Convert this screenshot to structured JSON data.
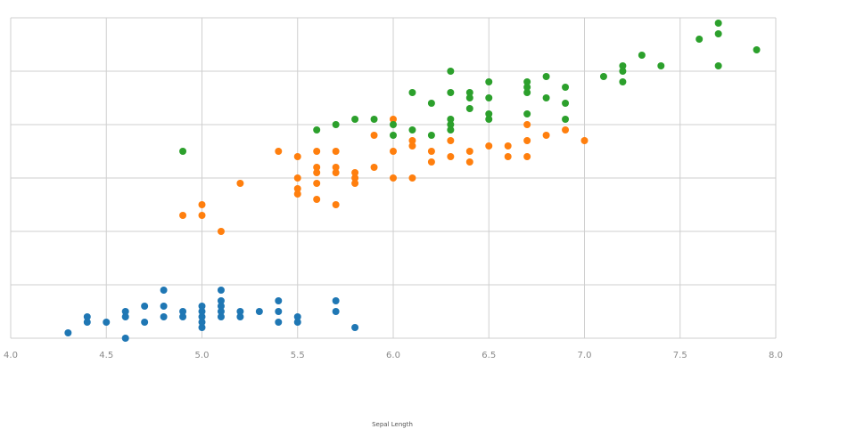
{
  "chart_data": {
    "type": "scatter",
    "title": "",
    "xlabel": "Sepal Length",
    "ylabel": "",
    "xlim": [
      4.0,
      8.0
    ],
    "ylim": [
      0,
      6
    ],
    "x_ticks": [
      "4.0",
      "4.5",
      "5.0",
      "5.5",
      "6.0",
      "6.5",
      "7.0",
      "7.5",
      "8.0"
    ],
    "y_tick_count": 6,
    "grid": true,
    "legend": "none",
    "series": [
      {
        "color": "#1f77b4",
        "points": [
          [
            4.3,
            0.1
          ],
          [
            4.4,
            0.3
          ],
          [
            4.4,
            0.4
          ],
          [
            4.5,
            0.3
          ],
          [
            4.6,
            0.0
          ],
          [
            4.6,
            0.4
          ],
          [
            4.6,
            0.5
          ],
          [
            4.7,
            0.3
          ],
          [
            4.7,
            0.6
          ],
          [
            4.8,
            0.4
          ],
          [
            4.8,
            0.6
          ],
          [
            4.8,
            0.9
          ],
          [
            4.9,
            0.4
          ],
          [
            4.9,
            0.5
          ],
          [
            5.0,
            0.2
          ],
          [
            5.0,
            0.3
          ],
          [
            5.0,
            0.4
          ],
          [
            5.0,
            0.5
          ],
          [
            5.0,
            0.6
          ],
          [
            5.1,
            0.4
          ],
          [
            5.1,
            0.5
          ],
          [
            5.1,
            0.6
          ],
          [
            5.1,
            0.7
          ],
          [
            5.1,
            0.9
          ],
          [
            5.2,
            0.4
          ],
          [
            5.2,
            0.5
          ],
          [
            5.3,
            0.5
          ],
          [
            5.4,
            0.3
          ],
          [
            5.4,
            0.5
          ],
          [
            5.4,
            0.7
          ],
          [
            5.5,
            0.3
          ],
          [
            5.5,
            0.4
          ],
          [
            5.7,
            0.5
          ],
          [
            5.7,
            0.7
          ],
          [
            5.8,
            0.2
          ]
        ]
      },
      {
        "color": "#ff7f0e",
        "points": [
          [
            4.9,
            2.3
          ],
          [
            5.0,
            2.3
          ],
          [
            5.0,
            2.5
          ],
          [
            5.1,
            2.0
          ],
          [
            5.2,
            2.9
          ],
          [
            5.4,
            3.5
          ],
          [
            5.5,
            2.7
          ],
          [
            5.5,
            2.8
          ],
          [
            5.5,
            3.0
          ],
          [
            5.5,
            3.4
          ],
          [
            5.6,
            2.6
          ],
          [
            5.6,
            2.9
          ],
          [
            5.6,
            3.1
          ],
          [
            5.6,
            3.2
          ],
          [
            5.6,
            3.5
          ],
          [
            5.7,
            2.5
          ],
          [
            5.7,
            3.1
          ],
          [
            5.7,
            3.2
          ],
          [
            5.7,
            3.5
          ],
          [
            5.8,
            2.9
          ],
          [
            5.8,
            3.0
          ],
          [
            5.8,
            3.1
          ],
          [
            5.9,
            3.2
          ],
          [
            5.9,
            3.8
          ],
          [
            6.0,
            3.0
          ],
          [
            6.0,
            3.5
          ],
          [
            6.0,
            4.1
          ],
          [
            6.1,
            3.0
          ],
          [
            6.1,
            3.6
          ],
          [
            6.1,
            3.7
          ],
          [
            6.2,
            3.3
          ],
          [
            6.2,
            3.5
          ],
          [
            6.3,
            3.4
          ],
          [
            6.3,
            3.7
          ],
          [
            6.4,
            3.3
          ],
          [
            6.4,
            3.5
          ],
          [
            6.5,
            3.6
          ],
          [
            6.6,
            3.4
          ],
          [
            6.6,
            3.6
          ],
          [
            6.7,
            3.4
          ],
          [
            6.7,
            3.7
          ],
          [
            6.7,
            4.0
          ],
          [
            6.8,
            3.8
          ],
          [
            6.9,
            3.9
          ],
          [
            7.0,
            3.7
          ]
        ]
      },
      {
        "color": "#2ca02c",
        "points": [
          [
            4.9,
            3.5
          ],
          [
            5.6,
            3.9
          ],
          [
            5.7,
            4.0
          ],
          [
            5.8,
            4.1
          ],
          [
            5.9,
            4.1
          ],
          [
            6.0,
            3.8
          ],
          [
            6.0,
            4.0
          ],
          [
            6.1,
            3.9
          ],
          [
            6.1,
            4.6
          ],
          [
            6.2,
            3.8
          ],
          [
            6.2,
            4.4
          ],
          [
            6.3,
            3.9
          ],
          [
            6.3,
            4.0
          ],
          [
            6.3,
            4.1
          ],
          [
            6.3,
            4.6
          ],
          [
            6.3,
            5.0
          ],
          [
            6.4,
            4.3
          ],
          [
            6.4,
            4.5
          ],
          [
            6.4,
            4.6
          ],
          [
            6.5,
            4.1
          ],
          [
            6.5,
            4.2
          ],
          [
            6.5,
            4.5
          ],
          [
            6.5,
            4.8
          ],
          [
            6.7,
            4.2
          ],
          [
            6.7,
            4.6
          ],
          [
            6.7,
            4.7
          ],
          [
            6.7,
            4.8
          ],
          [
            6.8,
            4.5
          ],
          [
            6.8,
            4.9
          ],
          [
            6.9,
            4.1
          ],
          [
            6.9,
            4.4
          ],
          [
            6.9,
            4.7
          ],
          [
            7.1,
            4.9
          ],
          [
            7.2,
            4.8
          ],
          [
            7.2,
            5.0
          ],
          [
            7.2,
            5.1
          ],
          [
            7.3,
            5.3
          ],
          [
            7.4,
            5.1
          ],
          [
            7.6,
            5.6
          ],
          [
            7.7,
            5.1
          ],
          [
            7.7,
            5.7
          ],
          [
            7.7,
            5.9
          ],
          [
            7.9,
            5.4
          ]
        ]
      }
    ]
  }
}
